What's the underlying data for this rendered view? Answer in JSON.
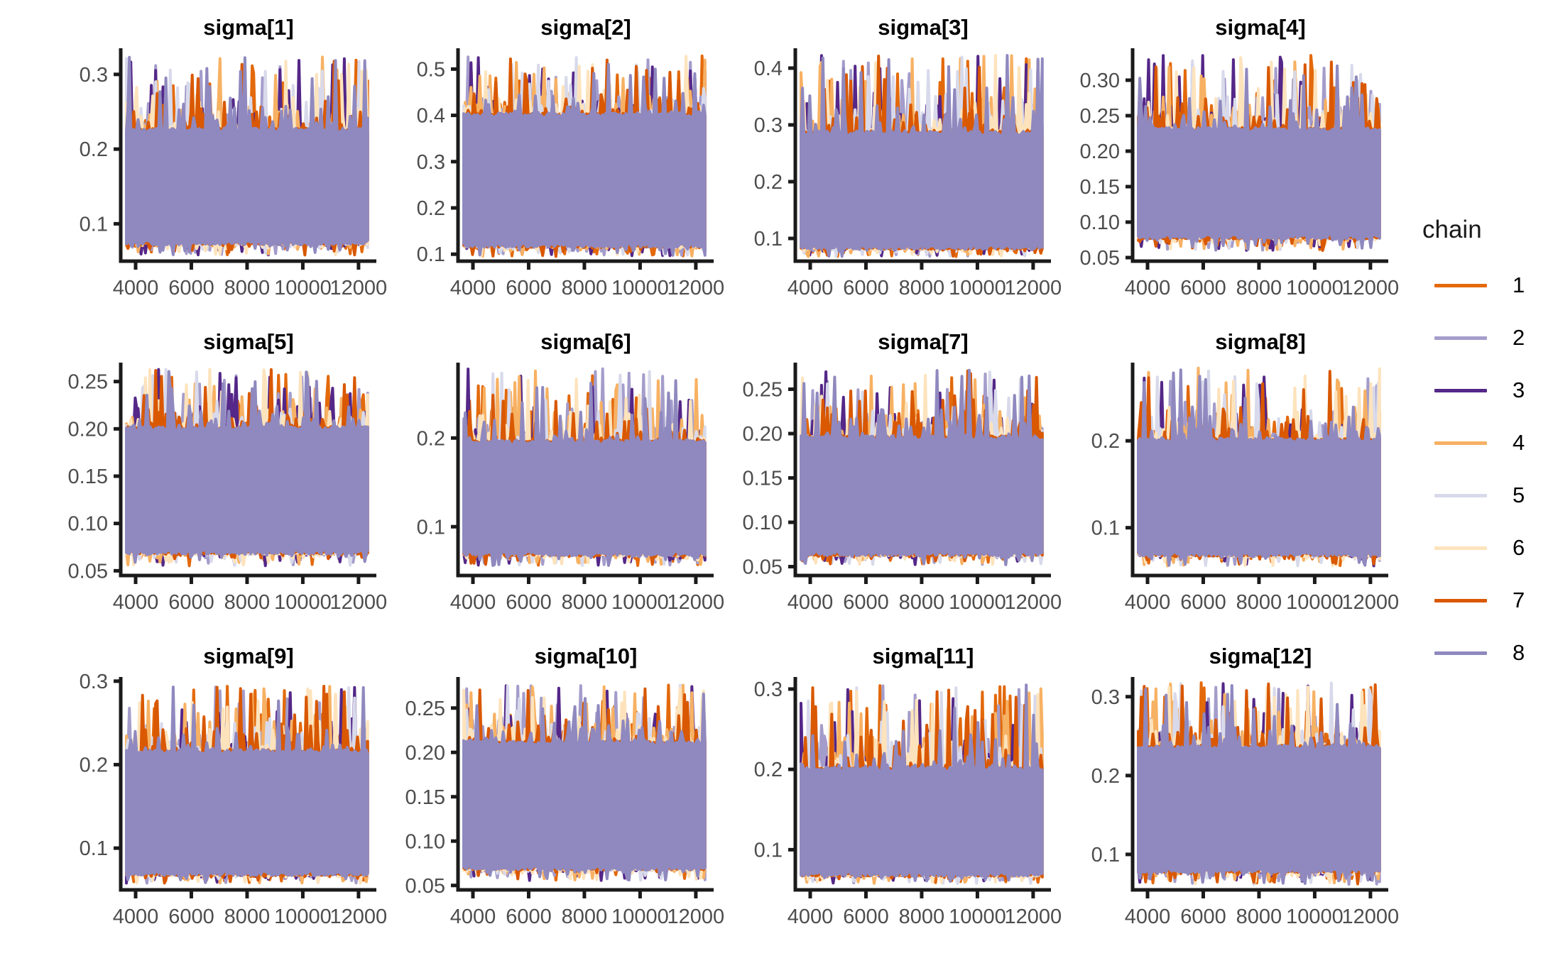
{
  "chart_data": {
    "type": "line",
    "kind": "mcmc-trace-grid",
    "grid": {
      "rows": 3,
      "cols": 4
    },
    "background": "#FFFFFF",
    "axis_color": "#1A1A1A",
    "tick_label_color": "#4D4D4D",
    "x_axis": {
      "ticks": [
        4000,
        6000,
        8000,
        10000,
        12000
      ],
      "axis_range": [
        3465,
        12640
      ],
      "data_range": [
        3670,
        12330
      ]
    },
    "legend": {
      "title": "chain",
      "position": "right",
      "entries": [
        {
          "label": "1",
          "color": "#E3690B"
        },
        {
          "label": "2",
          "color": "#A49DCB"
        },
        {
          "label": "3",
          "color": "#542788"
        },
        {
          "label": "4",
          "color": "#F7B163"
        },
        {
          "label": "5",
          "color": "#D8DAEB"
        },
        {
          "label": "6",
          "color": "#FDE3BC"
        },
        {
          "label": "7",
          "color": "#D95800"
        },
        {
          "label": "8",
          "color": "#8F89BF"
        }
      ]
    },
    "panels": [
      {
        "title": "sigma[1]",
        "y_ticks": [
          0.1,
          0.2,
          0.3
        ],
        "tick_decimals": 1,
        "ylim": [
          0.05,
          0.335
        ],
        "band": [
          0.075,
          0.225
        ],
        "spike_max": 0.325,
        "spike_min": 0.058
      },
      {
        "title": "sigma[2]",
        "y_ticks": [
          0.1,
          0.2,
          0.3,
          0.4,
          0.5
        ],
        "tick_decimals": 1,
        "ylim": [
          0.085,
          0.545
        ],
        "band": [
          0.12,
          0.4
        ],
        "spike_max": 0.53,
        "spike_min": 0.095
      },
      {
        "title": "sigma[3]",
        "y_ticks": [
          0.1,
          0.2,
          0.3,
          0.4
        ],
        "tick_decimals": 1,
        "ylim": [
          0.06,
          0.435
        ],
        "band": [
          0.085,
          0.285
        ],
        "spike_max": 0.425,
        "spike_min": 0.068
      },
      {
        "title": "sigma[4]",
        "y_ticks": [
          0.05,
          0.1,
          0.15,
          0.2,
          0.25,
          0.3
        ],
        "tick_decimals": 2,
        "ylim": [
          0.045,
          0.345
        ],
        "band": [
          0.08,
          0.23
        ],
        "spike_max": 0.335,
        "spike_min": 0.06
      },
      {
        "title": "sigma[5]",
        "y_ticks": [
          0.05,
          0.1,
          0.15,
          0.2,
          0.25
        ],
        "tick_decimals": 2,
        "ylim": [
          0.045,
          0.27
        ],
        "band": [
          0.07,
          0.2
        ],
        "spike_max": 0.263,
        "spike_min": 0.055
      },
      {
        "title": "sigma[6]",
        "y_ticks": [
          0.1,
          0.2
        ],
        "tick_decimals": 1,
        "ylim": [
          0.045,
          0.285
        ],
        "band": [
          0.07,
          0.195
        ],
        "spike_max": 0.278,
        "spike_min": 0.056
      },
      {
        "title": "sigma[7]",
        "y_ticks": [
          0.05,
          0.1,
          0.15,
          0.2,
          0.25
        ],
        "tick_decimals": 2,
        "ylim": [
          0.04,
          0.28
        ],
        "band": [
          0.065,
          0.195
        ],
        "spike_max": 0.272,
        "spike_min": 0.052
      },
      {
        "title": "sigma[8]",
        "y_ticks": [
          0.1,
          0.2
        ],
        "tick_decimals": 1,
        "ylim": [
          0.045,
          0.29
        ],
        "band": [
          0.07,
          0.2
        ],
        "spike_max": 0.284,
        "spike_min": 0.056
      },
      {
        "title": "sigma[9]",
        "y_ticks": [
          0.1,
          0.2,
          0.3
        ],
        "tick_decimals": 1,
        "ylim": [
          0.05,
          0.305
        ],
        "band": [
          0.07,
          0.215
        ],
        "spike_max": 0.295,
        "spike_min": 0.058
      },
      {
        "title": "sigma[10]",
        "y_ticks": [
          0.05,
          0.1,
          0.15,
          0.2,
          0.25
        ],
        "tick_decimals": 2,
        "ylim": [
          0.045,
          0.285
        ],
        "band": [
          0.07,
          0.21
        ],
        "spike_max": 0.276,
        "spike_min": 0.055
      },
      {
        "title": "sigma[11]",
        "y_ticks": [
          0.1,
          0.2,
          0.3
        ],
        "tick_decimals": 1,
        "ylim": [
          0.05,
          0.315
        ],
        "band": [
          0.07,
          0.2
        ],
        "spike_max": 0.305,
        "spike_min": 0.058
      },
      {
        "title": "sigma[12]",
        "y_ticks": [
          0.1,
          0.2,
          0.3
        ],
        "tick_decimals": 1,
        "ylim": [
          0.055,
          0.325
        ],
        "band": [
          0.08,
          0.235
        ],
        "spike_max": 0.318,
        "spike_min": 0.062
      }
    ]
  }
}
